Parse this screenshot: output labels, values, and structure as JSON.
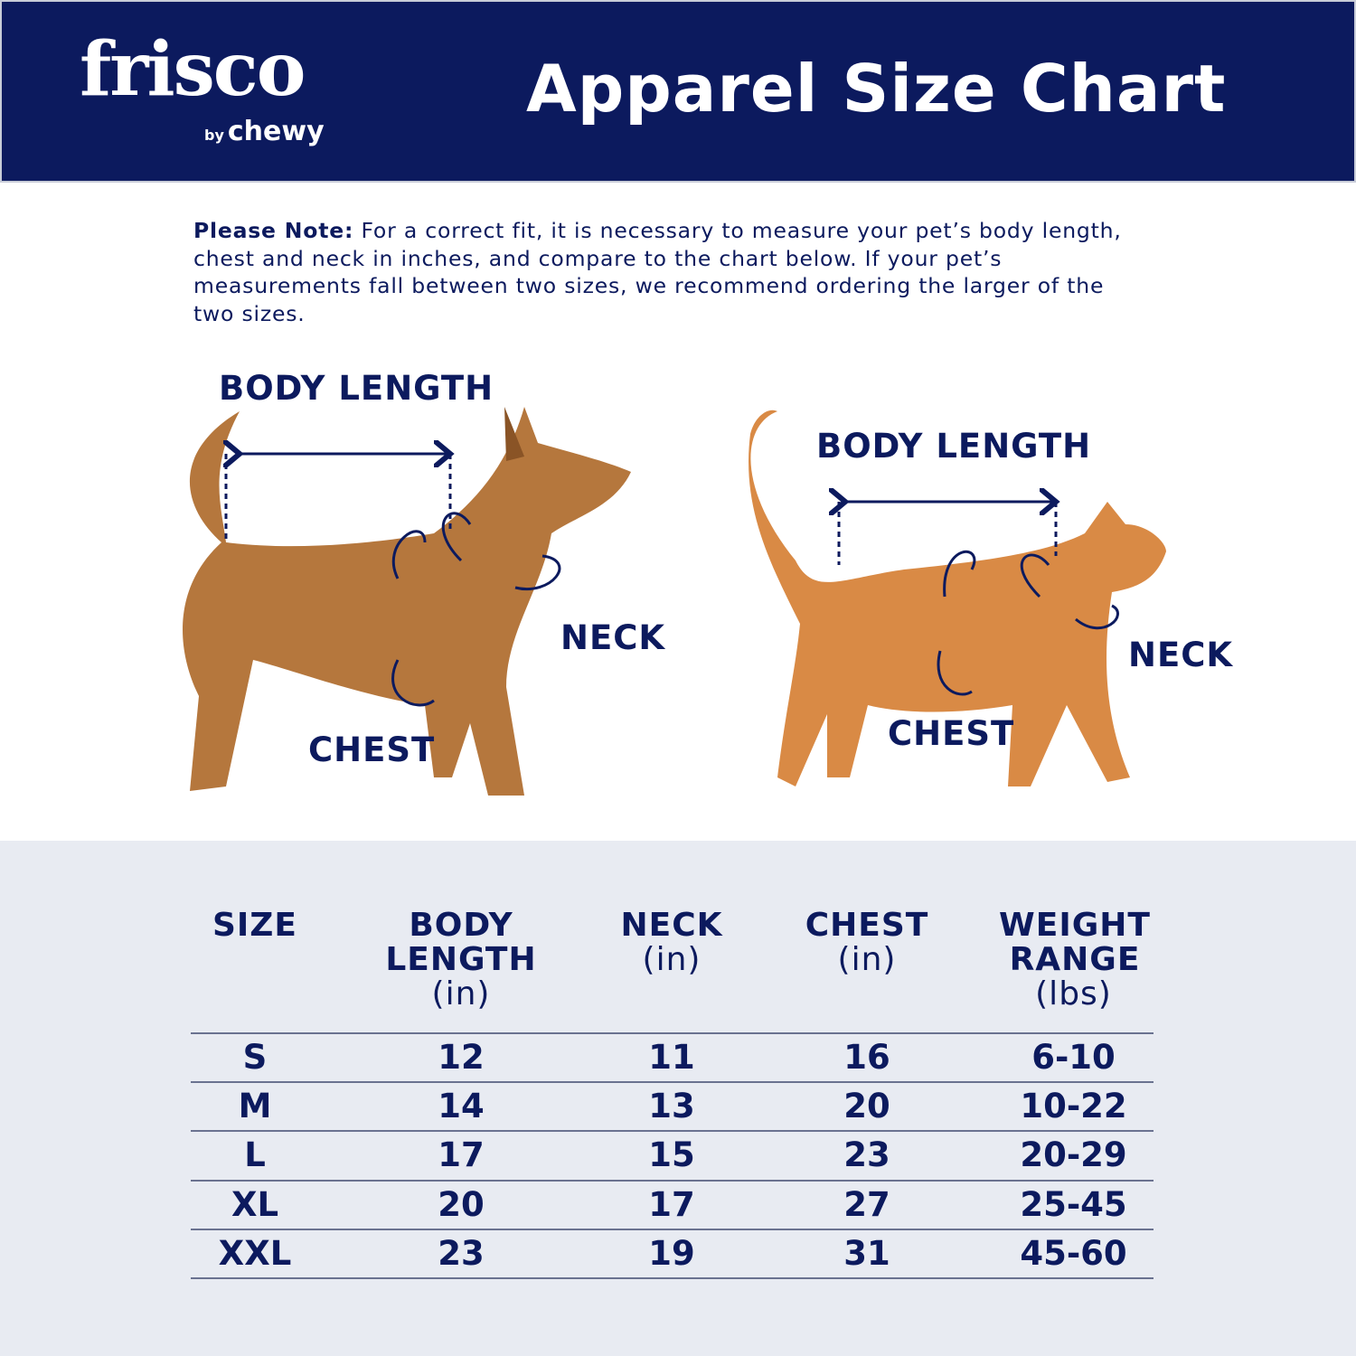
{
  "brand": {
    "logo": "frisco",
    "sub_by": "by",
    "sub_name": "chewy"
  },
  "header": {
    "title": "Apparel Size Chart"
  },
  "note": {
    "bold": "Please Note:",
    "text": " For a correct fit, it is necessary to measure your pet’s body length, chest and neck in inches, and compare to the chart below. If your pet’s measurements fall between two sizes, we recommend ordering the larger of the two sizes."
  },
  "dog_labels": {
    "body_length": "BODY LENGTH",
    "neck": "NECK",
    "chest": "CHEST"
  },
  "cat_labels": {
    "body_length": "BODY LENGTH",
    "neck": "NECK",
    "chest": "CHEST"
  },
  "colors": {
    "navy": "#0c1a5e",
    "table_bg": "#e8ebf2"
  },
  "table": {
    "headers": [
      {
        "title": "SIZE",
        "unit": ""
      },
      {
        "title": "BODY LENGTH",
        "unit": "(in)"
      },
      {
        "title": "NECK",
        "unit": "(in)"
      },
      {
        "title": "CHEST",
        "unit": "(in)"
      },
      {
        "title": "WEIGHT RANGE",
        "unit": "(lbs)"
      }
    ],
    "rows": [
      [
        "S",
        "12",
        "11",
        "16",
        "6-10"
      ],
      [
        "M",
        "14",
        "13",
        "20",
        "10-22"
      ],
      [
        "L",
        "17",
        "15",
        "23",
        "20-29"
      ],
      [
        "XL",
        "20",
        "17",
        "27",
        "25-45"
      ],
      [
        "XXL",
        "23",
        "19",
        "31",
        "45-60"
      ]
    ]
  }
}
